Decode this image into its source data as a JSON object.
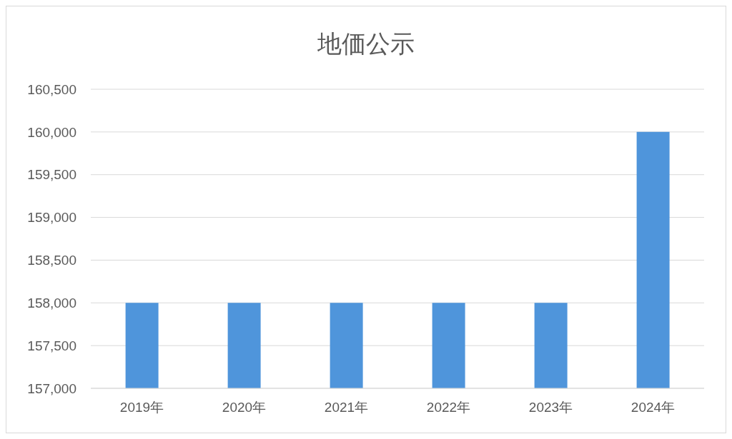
{
  "chart_data": {
    "type": "bar",
    "title": "地価公示",
    "categories": [
      "2019年",
      "2020年",
      "2021年",
      "2022年",
      "2023年",
      "2024年"
    ],
    "values": [
      158000,
      158000,
      158000,
      158000,
      158000,
      160000
    ],
    "color": "#4f95db",
    "ylim": [
      157000,
      160500
    ],
    "yticks": [
      {
        "value": 157000,
        "label": "157,000"
      },
      {
        "value": 157500,
        "label": "157,500"
      },
      {
        "value": 158000,
        "label": "158,000"
      },
      {
        "value": 158500,
        "label": "158,500"
      },
      {
        "value": 159000,
        "label": "159,000"
      },
      {
        "value": 159500,
        "label": "159,500"
      },
      {
        "value": 160000,
        "label": "160,000"
      },
      {
        "value": 160500,
        "label": "160,500"
      }
    ],
    "grid": "y",
    "legend": false
  }
}
